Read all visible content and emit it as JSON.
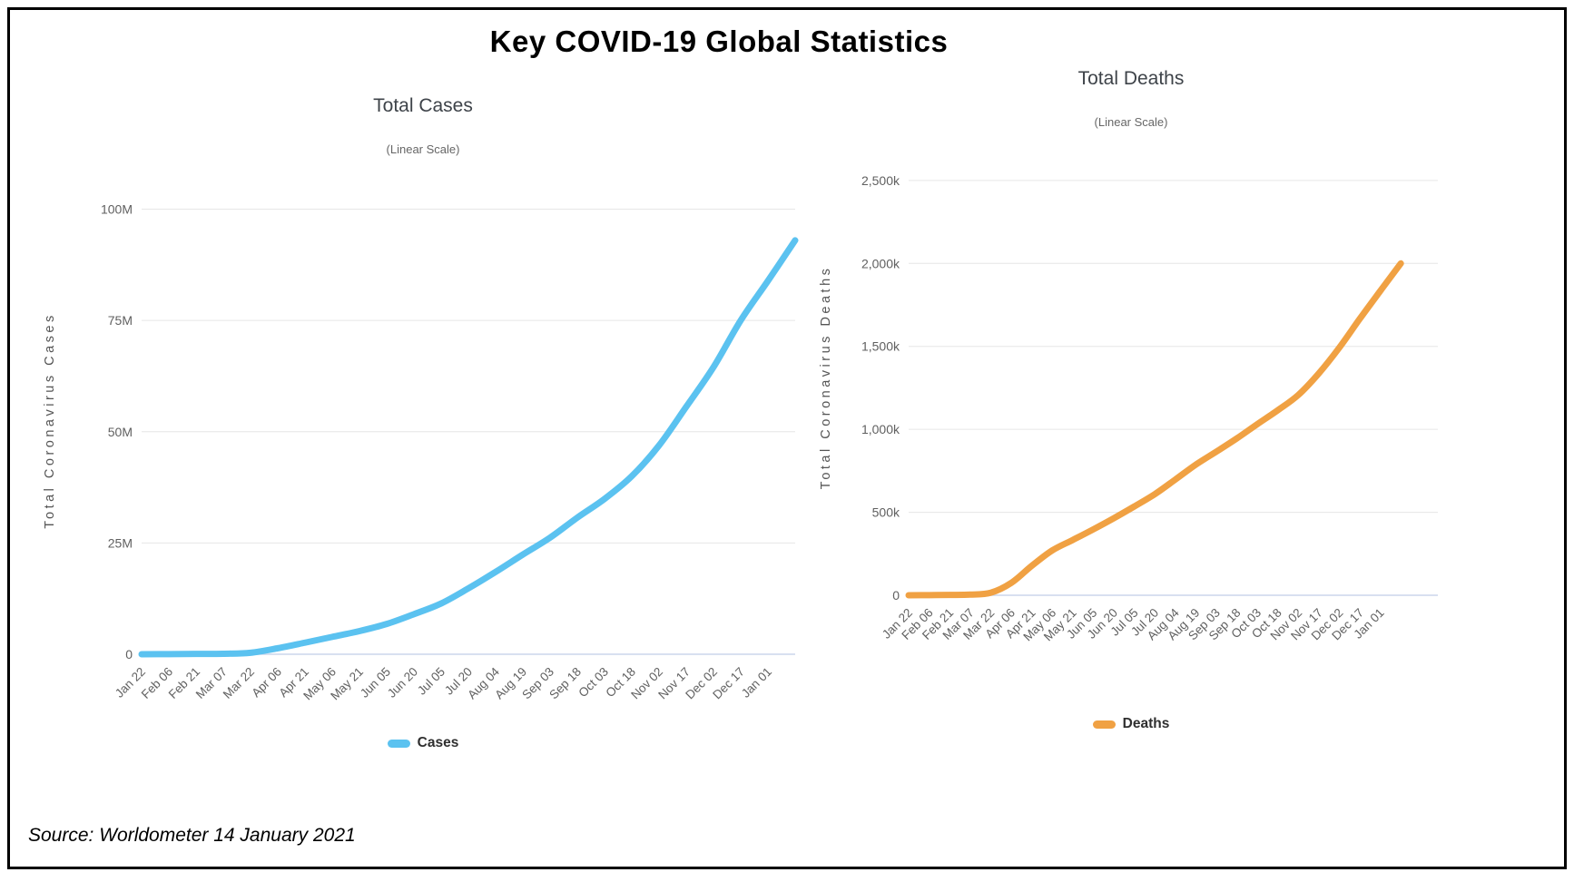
{
  "page": {
    "title": "Key COVID-19 Global Statistics",
    "source_note": "Source: Worldometer 14 January 2021"
  },
  "colors": {
    "cases_line": "#5BC2F0",
    "deaths_line": "#F0A143",
    "gridline": "#E6E6E6",
    "axis_line": "#CCD6EB",
    "tick_label": "#606060",
    "axis_title": "#555555",
    "chart_title": "#3E4349",
    "chart_subtitle": "#666666",
    "legend_text": "#2F2F2F"
  },
  "chart_data": [
    {
      "type": "line",
      "title": "Total Cases",
      "subtitle": "(Linear Scale)",
      "ylabel": "Total Coronavirus Cases",
      "legend": "Cases",
      "series_color_key": "cases_line",
      "units": "millions",
      "grid": true,
      "legend_position": "bottom",
      "ylim": [
        0,
        105
      ],
      "yticks": [
        {
          "value": 0,
          "label": "0"
        },
        {
          "value": 25,
          "label": "25M"
        },
        {
          "value": 50,
          "label": "50M"
        },
        {
          "value": 75,
          "label": "75M"
        },
        {
          "value": 100,
          "label": "100M"
        }
      ],
      "x_tick_labels": [
        "Jan 22",
        "Feb 06",
        "Feb 21",
        "Mar 07",
        "Mar 22",
        "Apr 06",
        "Apr 21",
        "May 06",
        "May 21",
        "Jun 05",
        "Jun 20",
        "Jul 05",
        "Jul 20",
        "Aug 04",
        "Aug 19",
        "Sep 03",
        "Sep 18",
        "Oct 03",
        "Oct 18",
        "Nov 02",
        "Nov 17",
        "Dec 02",
        "Dec 17",
        "Jan 01"
      ],
      "values": [
        0,
        0.03,
        0.08,
        0.11,
        0.34,
        1.35,
        2.6,
        3.9,
        5.2,
        6.8,
        9.0,
        11.4,
        14.8,
        18.5,
        22.4,
        26.2,
        30.7,
        34.9,
        40.0,
        46.9,
        55.6,
        64.5,
        75.0,
        83.9,
        93.0
      ]
    },
    {
      "type": "line",
      "title": "Total Deaths",
      "subtitle": "(Linear Scale)",
      "ylabel": "Total Coronavirus Deaths",
      "legend": "Deaths",
      "series_color_key": "deaths_line",
      "units": "thousands",
      "grid": true,
      "legend_position": "bottom",
      "ylim": [
        0,
        2625
      ],
      "yticks": [
        {
          "value": 0,
          "label": "0"
        },
        {
          "value": 500,
          "label": "500k"
        },
        {
          "value": 1000,
          "label": "1,000k"
        },
        {
          "value": 1500,
          "label": "1,500k"
        },
        {
          "value": 2000,
          "label": "2,000k"
        },
        {
          "value": 2500,
          "label": "2,500k"
        }
      ],
      "x_tick_labels": [
        "Jan 22",
        "Feb 06",
        "Feb 21",
        "Mar 07",
        "Mar 22",
        "Apr 06",
        "Apr 21",
        "May 06",
        "May 21",
        "Jun 05",
        "Jun 20",
        "Jul 05",
        "Jul 20",
        "Aug 04",
        "Aug 19",
        "Sep 03",
        "Sep 18",
        "Oct 03",
        "Oct 18",
        "Nov 02",
        "Nov 17",
        "Dec 02",
        "Dec 17",
        "Jan 01"
      ],
      "values": [
        0,
        1,
        2,
        4,
        15,
        74,
        177,
        270,
        333,
        397,
        464,
        535,
        609,
        697,
        787,
        865,
        945,
        1031,
        1115,
        1207,
        1337,
        1492,
        1666,
        1834,
        2000
      ]
    }
  ]
}
